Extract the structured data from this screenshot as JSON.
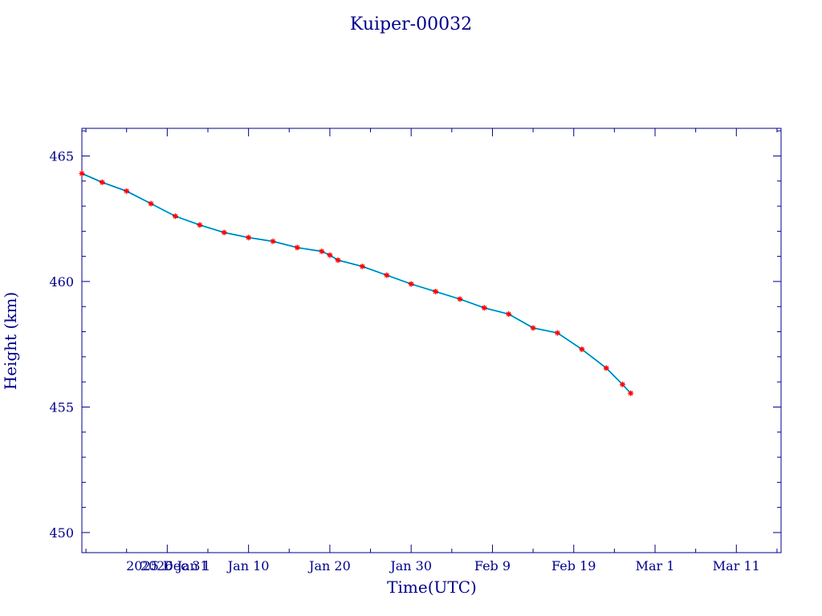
{
  "chart_data": {
    "type": "line",
    "title": "Kuiper-00032",
    "xlabel": "Time(UTC)",
    "ylabel": "Height (km)",
    "x_is_date": true,
    "xlim": [
      "2025-12-20T12:00",
      "2026-03-16T12:00"
    ],
    "ylim": [
      449.2,
      466.1
    ],
    "x_ticks": [
      {
        "date": "2025-12-31",
        "label": "2025 Dec 31"
      },
      {
        "date": "2026-01-01",
        "label": "2026 Jan 1"
      },
      {
        "date": "2026-01-10",
        "label": "Jan 10"
      },
      {
        "date": "2026-01-20",
        "label": "Jan 20"
      },
      {
        "date": "2026-01-30",
        "label": "Jan 30"
      },
      {
        "date": "2026-02-09",
        "label": "Feb  9"
      },
      {
        "date": "2026-02-19",
        "label": "Feb 19"
      },
      {
        "date": "2026-03-01",
        "label": "Mar  1"
      },
      {
        "date": "2026-03-11",
        "label": "Mar 11"
      }
    ],
    "y_ticks": [
      450,
      455,
      460,
      465
    ],
    "y_tick_labels": [
      "450",
      "455",
      "460",
      "465"
    ],
    "grid": false,
    "series": [
      {
        "line_color": "#00e5ee",
        "marker_color": "#ff0000",
        "marker": "star",
        "x": [
          "2025-12-20T12:00",
          "2025-12-23",
          "2025-12-26",
          "2025-12-29",
          "2026-01-01",
          "2026-01-04",
          "2026-01-07",
          "2026-01-10",
          "2026-01-13",
          "2026-01-16",
          "2026-01-19",
          "2026-01-20",
          "2026-01-21",
          "2026-01-24",
          "2026-01-27",
          "2026-01-30",
          "2026-02-02",
          "2026-02-05",
          "2026-02-08",
          "2026-02-11",
          "2026-02-14",
          "2026-02-17",
          "2026-02-20",
          "2026-02-23",
          "2026-02-25",
          "2026-02-26"
        ],
        "y": [
          464.3,
          463.95,
          463.6,
          463.1,
          462.6,
          462.25,
          461.95,
          461.75,
          461.6,
          461.35,
          461.2,
          461.05,
          460.85,
          460.6,
          460.25,
          459.9,
          459.6,
          459.3,
          458.95,
          458.7,
          458.15,
          457.95,
          457.3,
          456.55,
          455.9,
          455.55
        ]
      }
    ]
  }
}
